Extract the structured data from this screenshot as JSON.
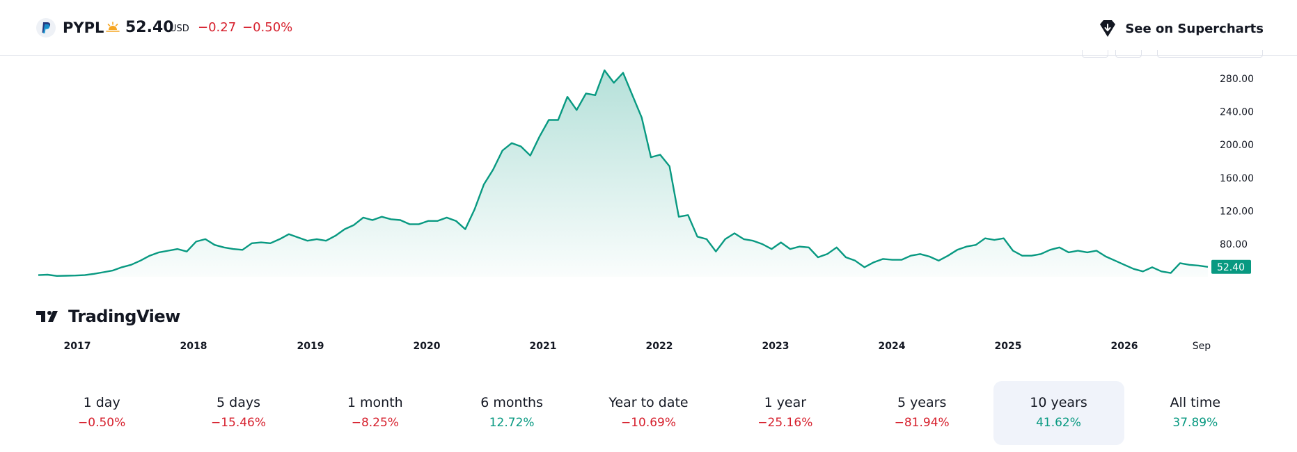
{
  "header": {
    "ticker": "PYPL",
    "price": "52.40",
    "currency": "USD",
    "change": "−0.27",
    "change_pct": "−0.50%",
    "session_icon": "sun-icon",
    "supercharts_label": "See on Supercharts",
    "logo_icon": "paypal-logo-icon"
  },
  "brand": {
    "name": "TradingView"
  },
  "colors": {
    "line": "#089981",
    "negative": "#d61f2c",
    "positive": "#089981",
    "last_price_label": "#089981"
  },
  "chart_data": {
    "type": "area",
    "title": "",
    "xlabel": "",
    "ylabel": "",
    "y_ticks": [
      "280.00",
      "240.00",
      "200.00",
      "160.00",
      "120.00",
      "80.00"
    ],
    "x_tick_labels": [
      "2017",
      "2018",
      "2019",
      "2020",
      "2021",
      "2022",
      "2023",
      "2024",
      "2025",
      "2026",
      "Sep"
    ],
    "last_price_label": "52.40",
    "ylim": [
      40,
      300
    ],
    "grid": false,
    "series": [
      {
        "values": [
          42.5,
          43,
          41.5,
          41.8,
          42,
          42.5,
          44,
          46,
          48,
          52,
          55,
          60,
          66,
          70,
          72,
          74,
          71,
          83,
          86,
          79,
          76,
          74,
          73,
          81,
          82,
          81,
          86,
          92,
          88,
          84,
          86,
          84,
          90,
          98,
          103,
          112,
          109,
          113,
          110,
          109,
          104,
          104,
          108,
          108,
          112,
          108,
          98,
          122,
          152,
          170,
          193,
          202,
          198,
          187,
          210,
          230,
          230,
          258,
          242,
          262,
          260,
          290,
          275,
          287,
          260,
          233,
          185,
          188,
          174,
          113,
          115,
          89,
          86,
          71,
          86,
          93,
          86,
          84,
          80,
          74,
          82,
          74,
          77,
          76,
          64,
          68,
          76,
          64,
          60,
          52,
          58,
          62,
          61,
          61,
          66,
          68,
          65,
          60,
          66,
          73,
          77,
          79,
          87,
          85,
          87,
          72,
          66,
          66,
          68,
          73,
          76,
          70,
          72,
          70,
          72,
          65,
          60,
          55,
          50,
          47,
          52,
          47,
          45,
          57,
          55,
          54,
          52.4
        ]
      }
    ]
  },
  "periods": [
    {
      "label": "1 day",
      "value": "−0.50%",
      "tone": "neg"
    },
    {
      "label": "5 days",
      "value": "−15.46%",
      "tone": "neg"
    },
    {
      "label": "1 month",
      "value": "−8.25%",
      "tone": "neg"
    },
    {
      "label": "6 months",
      "value": "12.72%",
      "tone": "pos"
    },
    {
      "label": "Year to date",
      "value": "−10.69%",
      "tone": "neg"
    },
    {
      "label": "1 year",
      "value": "−25.16%",
      "tone": "neg"
    },
    {
      "label": "5 years",
      "value": "−81.94%",
      "tone": "neg"
    },
    {
      "label": "10 years",
      "value": "41.62%",
      "tone": "pos",
      "active": true
    },
    {
      "label": "All time",
      "value": "37.89%",
      "tone": "pos"
    }
  ]
}
